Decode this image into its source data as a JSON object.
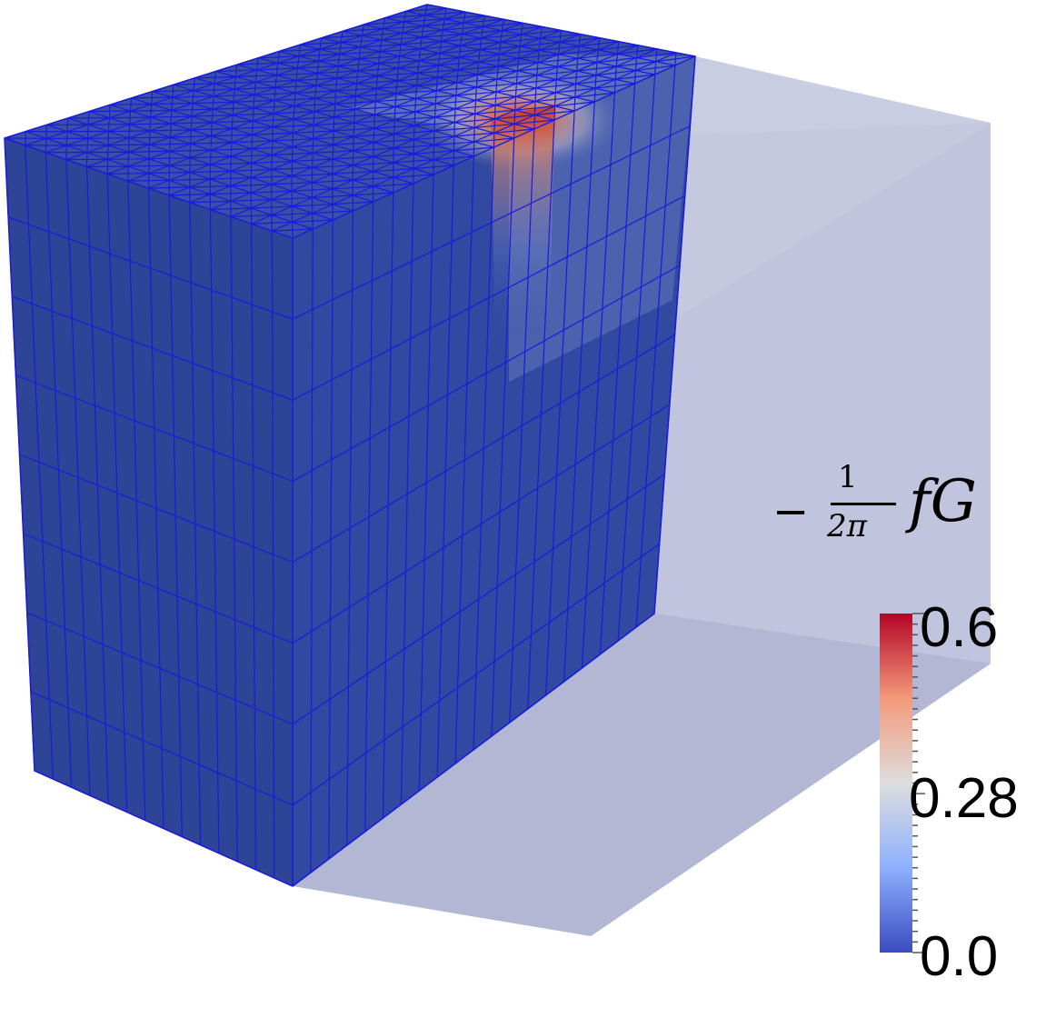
{
  "legend": {
    "title_minus": "−",
    "title_numerator": "1",
    "title_denominator": "2π",
    "title_symbol": "fG",
    "ticks": [
      "0.6",
      "0.28",
      "0.0"
    ],
    "colormap": [
      "#3b4cc0",
      "#8db0fe",
      "#dddddd",
      "#f49a7b",
      "#b40426"
    ]
  },
  "mesh": {
    "solid_color": "#2f4598",
    "line_color": "#1a1adc",
    "ghost_color": "#b4b9d4",
    "hotspot_color": "#c23b22"
  }
}
